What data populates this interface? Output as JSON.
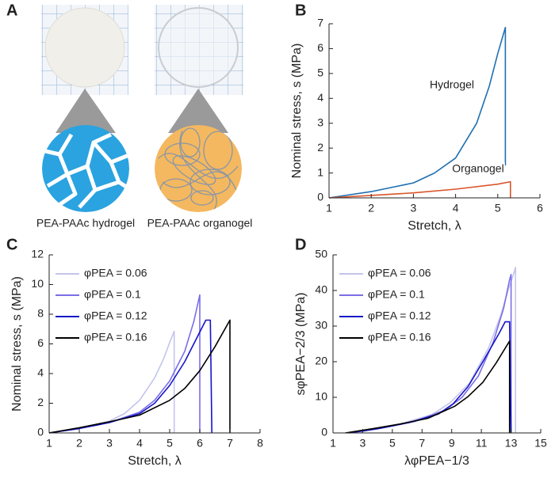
{
  "panel_a": {
    "label": "A",
    "captions": [
      "PEA-PAAc hydrogel",
      "PEA-PAAc organogel"
    ]
  },
  "chart_data": [
    {
      "type": "line",
      "label": "B",
      "x_label": "Stretch, λ",
      "y_label": "Nominal stress, s (MPa)",
      "xlim": [
        1,
        6
      ],
      "xticks": [
        1,
        2,
        3,
        4,
        5,
        6
      ],
      "ylim": [
        0,
        7
      ],
      "yticks": [
        0,
        1,
        2,
        3,
        4,
        5,
        6,
        7
      ],
      "annotations": [
        "Hydrogel",
        "Organogel"
      ],
      "series": [
        {
          "name": "Hydrogel",
          "color": "#1f6fb0",
          "x": [
            1,
            2,
            3,
            3.5,
            4,
            4.5,
            4.8,
            5.0,
            5.18,
            5.18
          ],
          "values": [
            0,
            0.25,
            0.6,
            1.0,
            1.6,
            3.0,
            4.5,
            5.8,
            6.85,
            1.3
          ]
        },
        {
          "name": "Organogel",
          "color": "#d9542a",
          "x": [
            1,
            2,
            3,
            4,
            5,
            5.3,
            5.3
          ],
          "values": [
            0,
            0.1,
            0.2,
            0.35,
            0.55,
            0.65,
            0
          ]
        }
      ]
    },
    {
      "type": "line",
      "label": "C",
      "x_label": "Stretch, λ",
      "y_label": "Nominal stress, s (MPa)",
      "xlim": [
        1,
        8
      ],
      "xticks": [
        1,
        2,
        3,
        4,
        5,
        6,
        7,
        8
      ],
      "ylim": [
        0,
        12
      ],
      "yticks": [
        0,
        2,
        4,
        6,
        8,
        10,
        12
      ],
      "legend": "upper left",
      "series": [
        {
          "name": "φPEA = 0.06",
          "color": "#c4c4ec",
          "x": [
            1,
            2,
            3,
            3.5,
            4,
            4.5,
            4.8,
            5.0,
            5.15,
            5.15
          ],
          "values": [
            0,
            0.3,
            0.8,
            1.3,
            2.2,
            3.7,
            5.0,
            6.1,
            6.85,
            0
          ]
        },
        {
          "name": "φPEA = 0.1",
          "color": "#7b6ee8",
          "x": [
            1,
            2,
            3,
            4,
            4.5,
            5,
            5.5,
            5.8,
            6.0,
            6.0
          ],
          "values": [
            0,
            0.3,
            0.7,
            1.4,
            2.2,
            3.5,
            5.5,
            7.5,
            9.3,
            0
          ]
        },
        {
          "name": "φPEA = 0.12",
          "color": "#1414c8",
          "x": [
            1,
            2,
            3,
            4,
            4.5,
            5,
            5.5,
            6.0,
            6.2,
            6.35,
            6.4
          ],
          "values": [
            0,
            0.3,
            0.7,
            1.3,
            2.0,
            3.2,
            4.8,
            6.8,
            7.6,
            7.6,
            0
          ]
        },
        {
          "name": "φPEA = 0.16",
          "color": "#000000",
          "x": [
            1,
            2,
            3,
            4,
            5,
            5.5,
            6,
            6.5,
            7.0,
            7.0
          ],
          "values": [
            0,
            0.35,
            0.75,
            1.2,
            2.2,
            3.0,
            4.2,
            5.8,
            7.6,
            0
          ]
        }
      ]
    },
    {
      "type": "line",
      "label": "D",
      "x_label": "λφPEA−1/3",
      "y_label": "sφPEA−2/3 (MPa)",
      "xlim": [
        1,
        15
      ],
      "xticks": [
        1,
        3,
        5,
        7,
        9,
        11,
        13,
        15
      ],
      "ylim": [
        0,
        50
      ],
      "yticks": [
        0,
        10,
        20,
        30,
        40,
        50
      ],
      "legend": "upper left",
      "series": [
        {
          "name": "φPEA = 0.06",
          "color": "#c4c4ec",
          "x": [
            2.55,
            5.1,
            7.7,
            8.9,
            10.2,
            11.5,
            12.3,
            12.8,
            13.2,
            13.3,
            13.3
          ],
          "values": [
            0,
            2,
            5.2,
            8.5,
            14,
            24,
            33,
            40,
            45,
            46.5,
            0
          ]
        },
        {
          "name": "φPEA = 0.1",
          "color": "#7b6ee8",
          "x": [
            2.15,
            4.3,
            6.5,
            8.6,
            9.7,
            10.8,
            11.8,
            12.5,
            12.9,
            13.0,
            13.0
          ],
          "values": [
            0,
            1.4,
            3.2,
            6.5,
            10,
            16,
            25.5,
            35,
            43,
            44.5,
            0
          ]
        },
        {
          "name": "φPEA = 0.12",
          "color": "#1414c8",
          "x": [
            2.03,
            4.05,
            6.1,
            8.1,
            9.1,
            10.1,
            11.1,
            12.2,
            12.6,
            12.9,
            13.0
          ],
          "values": [
            0,
            1.2,
            2.9,
            5.3,
            8.2,
            13,
            20,
            28,
            31.2,
            31.2,
            0
          ]
        },
        {
          "name": "φPEA = 0.16",
          "color": "#000000",
          "x": [
            1.84,
            3.7,
            5.5,
            7.4,
            9.2,
            10.1,
            11.1,
            12.0,
            12.9,
            12.9
          ],
          "values": [
            0,
            1.2,
            2.5,
            4.1,
            7.5,
            10.2,
            14.2,
            19.7,
            25.8,
            0
          ]
        }
      ]
    }
  ]
}
